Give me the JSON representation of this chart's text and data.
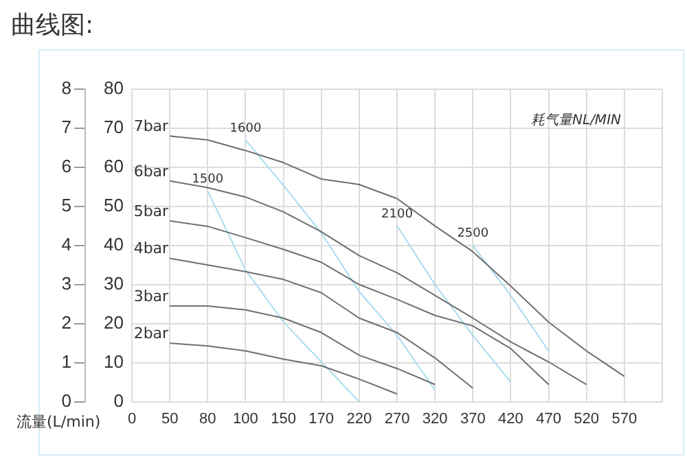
{
  "chart_data": {
    "type": "line",
    "title": "曲线图:",
    "xlabel": "流量(L/min)",
    "annotations": [
      "耗气量NL/MIN"
    ],
    "categories": [
      "0",
      "50",
      "80",
      "100",
      "150",
      "170",
      "220",
      "270",
      "320",
      "370",
      "420",
      "470",
      "520",
      "570",
      null
    ],
    "ylim": [
      0,
      80
    ],
    "yticks": [
      0,
      10,
      20,
      30,
      40,
      50,
      60,
      70,
      80
    ],
    "y2lim": [
      0,
      8
    ],
    "y2ticks": [
      0,
      1,
      2,
      3,
      4,
      5,
      6,
      7,
      8
    ],
    "grid": true,
    "legend": false,
    "marker": "none",
    "line_style": "solid",
    "series": [
      {
        "name": "7bar",
        "color": "#6e6e6e",
        "values": [
          null,
          68,
          67,
          64.3,
          61.2,
          57,
          55.6,
          52,
          45,
          38.4,
          29.6,
          20.4,
          13,
          6.5,
          null
        ]
      },
      {
        "name": "6bar",
        "color": "#6e6e6e",
        "values": [
          null,
          56.5,
          54.8,
          52.4,
          48.6,
          43.5,
          37.4,
          33,
          27.2,
          21.4,
          15.3,
          10.2,
          4.4,
          null,
          null
        ]
      },
      {
        "name": "5bar",
        "color": "#6e6e6e",
        "values": [
          null,
          46.3,
          44.9,
          42,
          39,
          35.7,
          30,
          26.2,
          22.1,
          19.4,
          13.6,
          4.4,
          null,
          null,
          null
        ]
      },
      {
        "name": "4bar",
        "color": "#6e6e6e",
        "values": [
          null,
          36.7,
          35,
          33.3,
          31.3,
          27.9,
          21.4,
          17.7,
          11.2,
          3.5,
          null,
          null,
          null,
          null,
          null
        ]
      },
      {
        "name": "3bar",
        "color": "#6e6e6e",
        "values": [
          null,
          24.5,
          24.5,
          23.5,
          21.4,
          17.7,
          11.9,
          8.5,
          4.4,
          null,
          null,
          null,
          null,
          null,
          null
        ]
      },
      {
        "name": "2bar",
        "color": "#6e6e6e",
        "values": [
          null,
          15,
          14.3,
          13,
          10.9,
          9.2,
          5.8,
          2,
          null,
          null,
          null,
          null,
          null,
          null,
          null
        ]
      },
      {
        "name": "1500",
        "color": "#a9dcef",
        "values": [
          null,
          null,
          54,
          33.7,
          20.4,
          10.2,
          0,
          null,
          null,
          null,
          null,
          null,
          null,
          null,
          null
        ]
      },
      {
        "name": "1600",
        "color": "#a9dcef",
        "values": [
          null,
          null,
          null,
          67,
          55.4,
          43.2,
          28.2,
          17,
          3,
          null,
          null,
          null,
          null,
          null,
          null
        ]
      },
      {
        "name": "2100",
        "color": "#a9dcef",
        "values": [
          null,
          null,
          null,
          null,
          null,
          null,
          null,
          45,
          30,
          17,
          5,
          null,
          null,
          null,
          null
        ]
      },
      {
        "name": "2500",
        "color": "#a9dcef",
        "values": [
          null,
          null,
          null,
          null,
          null,
          null,
          null,
          null,
          null,
          40,
          27.2,
          13,
          null,
          null,
          null
        ]
      }
    ]
  }
}
